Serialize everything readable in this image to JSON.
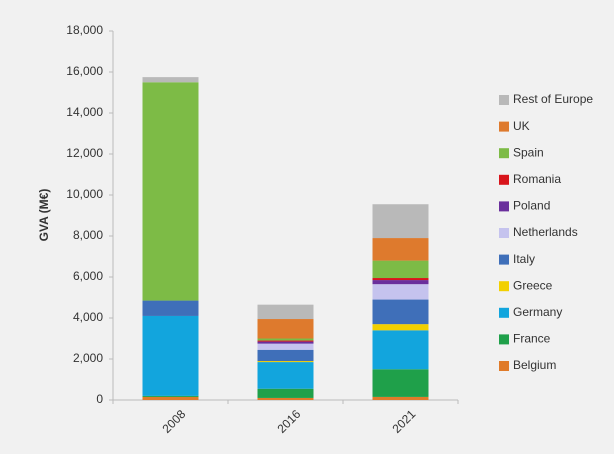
{
  "chart_data": {
    "type": "stacked-bar",
    "y_label": "GVA (M€)",
    "categories": [
      "2008",
      "2016",
      "2021"
    ],
    "series": [
      {
        "name": "Belgium",
        "color": "#e07b2a",
        "values": [
          150,
          100,
          150
        ]
      },
      {
        "name": "France",
        "color": "#1fa04a",
        "values": [
          50,
          450,
          1350
        ]
      },
      {
        "name": "Germany",
        "color": "#12a5dd",
        "values": [
          3900,
          1300,
          1900
        ]
      },
      {
        "name": "Greece",
        "color": "#f2d000",
        "values": [
          0,
          50,
          300
        ]
      },
      {
        "name": "Italy",
        "color": "#3f6fb9",
        "values": [
          750,
          550,
          1200
        ]
      },
      {
        "name": "Netherlands",
        "color": "#c5c3ee",
        "values": [
          0,
          300,
          750
        ]
      },
      {
        "name": "Poland",
        "color": "#6a2f9c",
        "values": [
          0,
          100,
          200
        ]
      },
      {
        "name": "Romania",
        "color": "#d8141b",
        "values": [
          0,
          50,
          100
        ]
      },
      {
        "name": "Spain",
        "color": "#7dbb46",
        "values": [
          10650,
          100,
          850
        ]
      },
      {
        "name": "UK",
        "color": "#de7a2d",
        "values": [
          0,
          950,
          1100
        ]
      },
      {
        "name": "Rest of Europe",
        "color": "#b9b9b9",
        "values": [
          250,
          700,
          1650
        ]
      }
    ],
    "ylim": [
      0,
      18000
    ],
    "yticks": [
      0,
      {
        "value": 2000,
        "label": "2,000"
      },
      {
        "value": 4000,
        "label": "4,000"
      },
      {
        "value": 6000,
        "label": "6,000"
      },
      {
        "value": 8000,
        "label": "8,000"
      },
      {
        "value": 10000,
        "label": "10,000"
      },
      {
        "value": 12000,
        "label": "12,000"
      },
      {
        "value": 14000,
        "label": "14,000"
      },
      {
        "value": 16000,
        "label": "16,000"
      },
      {
        "value": 18000,
        "label": "18,000"
      }
    ],
    "legend": "right"
  }
}
